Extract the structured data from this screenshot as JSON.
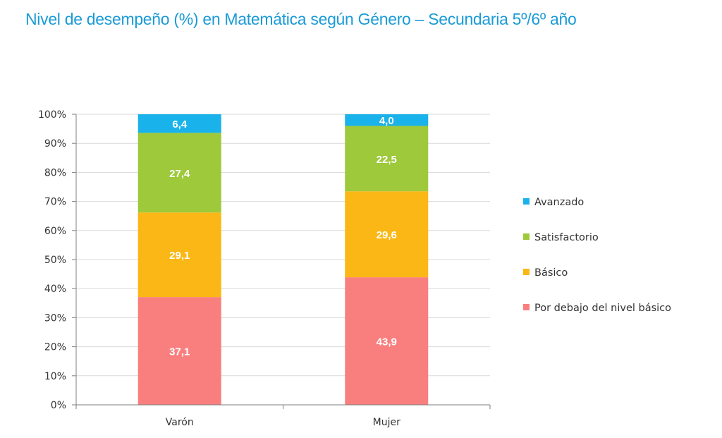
{
  "title": "Nivel de desempeño (%) en Matemática según Género  – Secundaria 5º/6º año",
  "chart_data": {
    "type": "bar",
    "stacked": true,
    "categories": [
      "Varón",
      "Mujer"
    ],
    "series": [
      {
        "name": "Por debajo del nivel básico",
        "values": [
          37.1,
          43.9
        ],
        "labels": [
          "37,1",
          "43,9"
        ],
        "color": "#f97f7f"
      },
      {
        "name": "Básico",
        "values": [
          29.1,
          29.6
        ],
        "labels": [
          "29,1",
          "29,6"
        ],
        "color": "#fbb715"
      },
      {
        "name": "Satisfactorio",
        "values": [
          27.4,
          22.5
        ],
        "labels": [
          "27,4",
          "22,5"
        ],
        "color": "#9dc93b"
      },
      {
        "name": "Avanzado",
        "values": [
          6.4,
          4.0
        ],
        "labels": [
          "6,4",
          "4,0"
        ],
        "color": "#1ab2ea"
      }
    ],
    "ylim": [
      0,
      100
    ],
    "yticks": [
      "0%",
      "10%",
      "20%",
      "30%",
      "40%",
      "50%",
      "60%",
      "70%",
      "80%",
      "90%",
      "100%"
    ],
    "grid": true,
    "legend_position": "right",
    "legend_order": [
      "Avanzado",
      "Satisfactorio",
      "Básico",
      "Por debajo del nivel básico"
    ]
  }
}
